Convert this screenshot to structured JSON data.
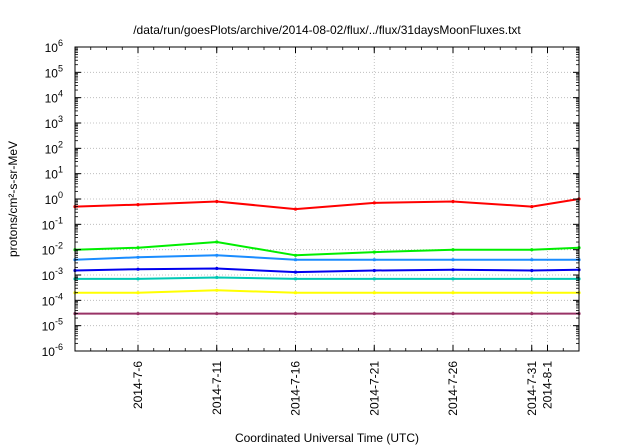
{
  "chart_data": {
    "type": "line",
    "title": "/data/run/goesPlots/archive/2014-08-02/flux/../flux/31daysMoonFluxes.txt",
    "xlabel": "Coordinated Universal Time (UTC)",
    "ylabel": "protons/cm²-s-sr-MeV",
    "y_scale": "log",
    "ylim": [
      1e-06,
      1000000.0
    ],
    "xlim": [
      "2014-07-02",
      "2014-08-03"
    ],
    "grid": true,
    "y_ticks": [
      {
        "value": 1e-06,
        "exp": "-6"
      },
      {
        "value": 1e-05,
        "exp": "-5"
      },
      {
        "value": 0.0001,
        "exp": "-4"
      },
      {
        "value": 0.001,
        "exp": "-3"
      },
      {
        "value": 0.01,
        "exp": "-2"
      },
      {
        "value": 0.1,
        "exp": "-1"
      },
      {
        "value": 1,
        "exp": "0"
      },
      {
        "value": 10,
        "exp": "1"
      },
      {
        "value": 100,
        "exp": "2"
      },
      {
        "value": 1000,
        "exp": "3"
      },
      {
        "value": 10000,
        "exp": "4"
      },
      {
        "value": 100000,
        "exp": "5"
      },
      {
        "value": 1000000,
        "exp": "6"
      }
    ],
    "x_ticks": [
      "2014-7-6",
      "2014-7-11",
      "2014-7-16",
      "2014-7-21",
      "2014-7-26",
      "2014-7-31",
      "2014-8-1"
    ],
    "series": [
      {
        "color": "#ff0000",
        "x": [
          "2014-07-02",
          "2014-07-06",
          "2014-07-11",
          "2014-07-16",
          "2014-07-21",
          "2014-07-26",
          "2014-07-31",
          "2014-08-03"
        ],
        "values": [
          0.5,
          0.6,
          0.8,
          0.4,
          0.7,
          0.8,
          0.5,
          1.0
        ]
      },
      {
        "color": "#00ee00",
        "x": [
          "2014-07-02",
          "2014-07-06",
          "2014-07-11",
          "2014-07-16",
          "2014-07-21",
          "2014-07-26",
          "2014-07-31",
          "2014-08-03"
        ],
        "values": [
          0.01,
          0.012,
          0.02,
          0.006,
          0.008,
          0.01,
          0.01,
          0.012
        ]
      },
      {
        "color": "#1a8cff",
        "x": [
          "2014-07-02",
          "2014-07-06",
          "2014-07-11",
          "2014-07-16",
          "2014-07-21",
          "2014-07-26",
          "2014-07-31",
          "2014-08-03"
        ],
        "values": [
          0.004,
          0.005,
          0.006,
          0.004,
          0.004,
          0.004,
          0.004,
          0.004
        ]
      },
      {
        "color": "#0000ee",
        "x": [
          "2014-07-02",
          "2014-07-06",
          "2014-07-11",
          "2014-07-16",
          "2014-07-21",
          "2014-07-26",
          "2014-07-31",
          "2014-08-03"
        ],
        "values": [
          0.0015,
          0.0017,
          0.0018,
          0.0013,
          0.0015,
          0.0016,
          0.0015,
          0.0016
        ]
      },
      {
        "color": "#00c8b4",
        "x": [
          "2014-07-02",
          "2014-07-06",
          "2014-07-11",
          "2014-07-16",
          "2014-07-21",
          "2014-07-26",
          "2014-07-31",
          "2014-08-03"
        ],
        "values": [
          0.0007,
          0.0007,
          0.0008,
          0.0007,
          0.0007,
          0.0007,
          0.0007,
          0.0007
        ]
      },
      {
        "color": "#ffff00",
        "x": [
          "2014-07-02",
          "2014-07-06",
          "2014-07-11",
          "2014-07-16",
          "2014-07-21",
          "2014-07-26",
          "2014-07-31",
          "2014-08-03"
        ],
        "values": [
          0.0002,
          0.0002,
          0.00025,
          0.0002,
          0.0002,
          0.0002,
          0.0002,
          0.0002
        ]
      },
      {
        "color": "#993366",
        "x": [
          "2014-07-02",
          "2014-07-06",
          "2014-07-11",
          "2014-07-16",
          "2014-07-21",
          "2014-07-26",
          "2014-07-31",
          "2014-08-03"
        ],
        "values": [
          3e-05,
          3e-05,
          3e-05,
          3e-05,
          3e-05,
          3e-05,
          3e-05,
          3e-05
        ]
      }
    ]
  }
}
